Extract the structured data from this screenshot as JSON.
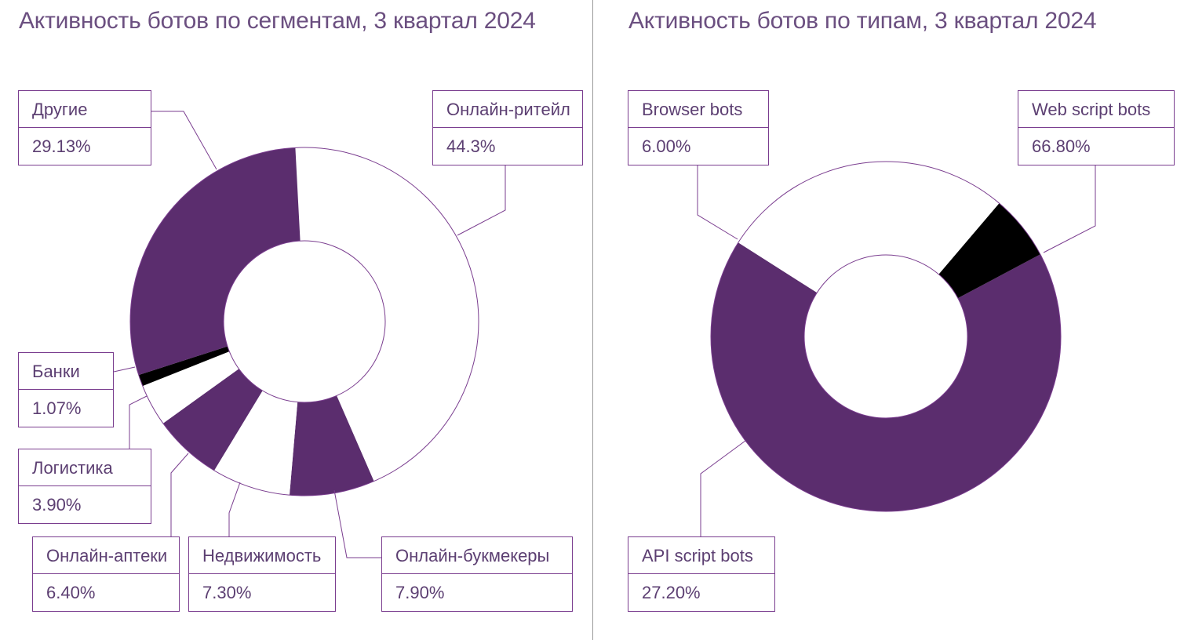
{
  "colors": {
    "purple": "#5b2d6e",
    "black": "#000000",
    "white": "#ffffff",
    "line": "#7a3d8f"
  },
  "chart_data": [
    {
      "type": "pie",
      "title": "Активность ботов по сегментам, 3 квартал 2024",
      "hole": true,
      "slices": [
        {
          "name": "Онлайн-ритейл",
          "label": "44.3%",
          "value": 44.3,
          "color": "#ffffff"
        },
        {
          "name": "Онлайн-букмекеры",
          "label": "7.90%",
          "value": 7.9,
          "color": "#5b2d6e"
        },
        {
          "name": "Недвижимость",
          "label": "7.30%",
          "value": 7.3,
          "color": "#ffffff"
        },
        {
          "name": "Онлайн-аптеки",
          "label": "6.40%",
          "value": 6.4,
          "color": "#5b2d6e"
        },
        {
          "name": "Логистика",
          "label": "3.90%",
          "value": 3.9,
          "color": "#ffffff"
        },
        {
          "name": "Банки",
          "label": "1.07%",
          "value": 1.07,
          "color": "#000000"
        },
        {
          "name": "Другие",
          "label": "29.13%",
          "value": 29.13,
          "color": "#5b2d6e"
        }
      ]
    },
    {
      "type": "pie",
      "title": "Активность ботов по типам, 3 квартал 2024",
      "hole": true,
      "slices": [
        {
          "name": "Web script bots",
          "label": "66.80%",
          "value": 66.8,
          "color": "#5b2d6e"
        },
        {
          "name": "API script bots",
          "label": "27.20%",
          "value": 27.2,
          "color": "#ffffff"
        },
        {
          "name": "Browser bots",
          "label": "6.00%",
          "value": 6.0,
          "color": "#000000"
        }
      ]
    }
  ]
}
